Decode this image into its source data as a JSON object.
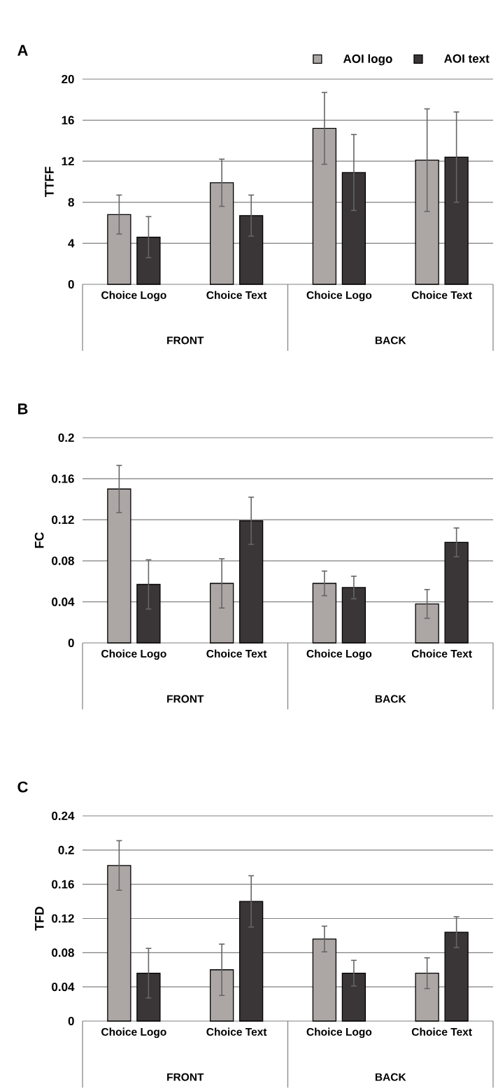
{
  "chart_data": [
    {
      "type": "bar",
      "title": "A",
      "ylabel": "TTFF",
      "categories": [
        "Choice Logo",
        "Choice Text",
        "Choice Logo",
        "Choice Text"
      ],
      "annotations": [
        "FRONT",
        "BACK"
      ],
      "ylim": [
        0,
        20
      ],
      "yticks": [
        0,
        4,
        8,
        12,
        16,
        20
      ],
      "grid": "y",
      "legend": "top right",
      "series": [
        {
          "name": "AOI logo",
          "color": "#aca7a5",
          "values": [
            6.8,
            9.9,
            15.2,
            12.1
          ],
          "errors": [
            1.9,
            2.3,
            3.5,
            5.0
          ]
        },
        {
          "name": "AOI text",
          "color": "#3a3536",
          "values": [
            4.6,
            6.7,
            10.9,
            12.4
          ],
          "errors": [
            2.0,
            2.0,
            3.7,
            4.4
          ]
        }
      ]
    },
    {
      "type": "bar",
      "title": "B",
      "ylabel": "FC",
      "categories": [
        "Choice Logo",
        "Choice Text",
        "Choice Logo",
        "Choice Text"
      ],
      "annotations": [
        "FRONT",
        "BACK"
      ],
      "ylim": [
        0,
        0.2
      ],
      "yticks": [
        0,
        0.04,
        0.08,
        0.12,
        0.16,
        0.2
      ],
      "grid": "y",
      "series": [
        {
          "color": "#aca7a5",
          "values": [
            0.15,
            0.058,
            0.058,
            0.038
          ],
          "errors": [
            0.023,
            0.024,
            0.012,
            0.014
          ]
        },
        {
          "color": "#3a3536",
          "values": [
            0.057,
            0.119,
            0.054,
            0.098
          ],
          "errors": [
            0.024,
            0.023,
            0.011,
            0.014
          ]
        }
      ]
    },
    {
      "type": "bar",
      "title": "C",
      "ylabel": "TFD",
      "categories": [
        "Choice Logo",
        "Choice Text",
        "Choice Logo",
        "Choice Text"
      ],
      "annotations": [
        "FRONT",
        "BACK"
      ],
      "ylim": [
        0,
        0.24
      ],
      "yticks": [
        0,
        0.04,
        0.08,
        0.12,
        0.16,
        0.2,
        0.24
      ],
      "grid": "y",
      "series": [
        {
          "color": "#aca7a5",
          "values": [
            0.182,
            0.06,
            0.096,
            0.056
          ],
          "errors": [
            0.029,
            0.03,
            0.015,
            0.018
          ]
        },
        {
          "color": "#3a3536",
          "values": [
            0.056,
            0.14,
            0.056,
            0.104
          ],
          "errors": [
            0.029,
            0.03,
            0.015,
            0.018
          ]
        }
      ]
    }
  ]
}
